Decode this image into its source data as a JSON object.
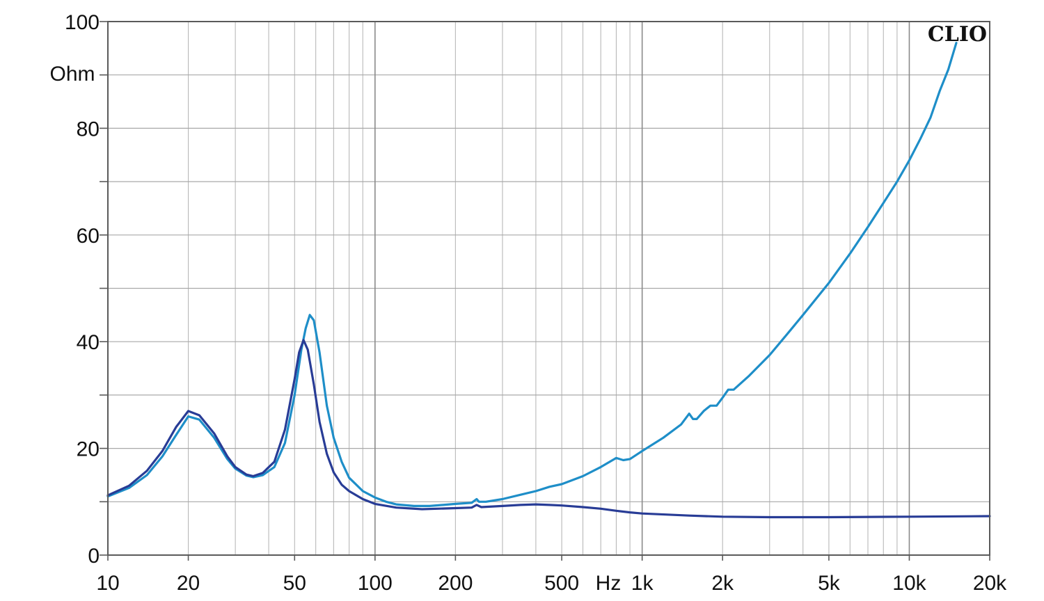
{
  "chart_data": {
    "type": "line",
    "brand": "CLIO",
    "x_scale": "log",
    "xlim": [
      10,
      20000
    ],
    "ylim": [
      0,
      100
    ],
    "ylabel": "Ohm",
    "xlabel": "Hz",
    "grid": true,
    "y_ticks": [
      {
        "value": 0,
        "label": "0"
      },
      {
        "value": 20,
        "label": "20"
      },
      {
        "value": 40,
        "label": "40"
      },
      {
        "value": 60,
        "label": "60"
      },
      {
        "value": 80,
        "label": "80"
      },
      {
        "value": 100,
        "label": "100"
      }
    ],
    "x_ticks": [
      {
        "value": 10,
        "label": "10"
      },
      {
        "value": 20,
        "label": "20"
      },
      {
        "value": 50,
        "label": "50"
      },
      {
        "value": 100,
        "label": "100"
      },
      {
        "value": 200,
        "label": "200"
      },
      {
        "value": 500,
        "label": "500"
      },
      {
        "value": 1000,
        "label": "1k"
      },
      {
        "value": 2000,
        "label": "2k"
      },
      {
        "value": 5000,
        "label": "5k"
      },
      {
        "value": 10000,
        "label": "10k"
      },
      {
        "value": 20000,
        "label": "20k"
      }
    ],
    "series": [
      {
        "color": "#1E8EC8",
        "points": [
          [
            10,
            11
          ],
          [
            12,
            12.6
          ],
          [
            14,
            15
          ],
          [
            16,
            18.5
          ],
          [
            18,
            22.5
          ],
          [
            20,
            26
          ],
          [
            22,
            25.4
          ],
          [
            25,
            22
          ],
          [
            28,
            18
          ],
          [
            30,
            16.2
          ],
          [
            33,
            14.9
          ],
          [
            35,
            14.6
          ],
          [
            38,
            15
          ],
          [
            42,
            16.5
          ],
          [
            46,
            21
          ],
          [
            50,
            30
          ],
          [
            53,
            38.5
          ],
          [
            55,
            42.5
          ],
          [
            57,
            45
          ],
          [
            59,
            44
          ],
          [
            62,
            38
          ],
          [
            66,
            28
          ],
          [
            70,
            22
          ],
          [
            75,
            17.5
          ],
          [
            80,
            14.5
          ],
          [
            90,
            12
          ],
          [
            100,
            10.8
          ],
          [
            110,
            10
          ],
          [
            120,
            9.5
          ],
          [
            140,
            9.2
          ],
          [
            160,
            9.2
          ],
          [
            200,
            9.6
          ],
          [
            230,
            9.8
          ],
          [
            240,
            10.5
          ],
          [
            245,
            10
          ],
          [
            260,
            10
          ],
          [
            300,
            10.5
          ],
          [
            350,
            11.3
          ],
          [
            400,
            12
          ],
          [
            450,
            12.8
          ],
          [
            500,
            13.3
          ],
          [
            600,
            14.8
          ],
          [
            700,
            16.5
          ],
          [
            800,
            18.2
          ],
          [
            850,
            17.8
          ],
          [
            900,
            18
          ],
          [
            1000,
            19.5
          ],
          [
            1200,
            22
          ],
          [
            1400,
            24.5
          ],
          [
            1500,
            26.5
          ],
          [
            1550,
            25.5
          ],
          [
            1600,
            25.5
          ],
          [
            1700,
            27
          ],
          [
            1800,
            28
          ],
          [
            1900,
            28
          ],
          [
            2000,
            29.5
          ],
          [
            2100,
            31
          ],
          [
            2200,
            31
          ],
          [
            2500,
            33.5
          ],
          [
            3000,
            37.5
          ],
          [
            3500,
            41.5
          ],
          [
            4000,
            45
          ],
          [
            5000,
            51
          ],
          [
            6000,
            56.5
          ],
          [
            7000,
            61.5
          ],
          [
            8000,
            66
          ],
          [
            9000,
            70
          ],
          [
            10000,
            74
          ],
          [
            11000,
            78
          ],
          [
            12000,
            82
          ],
          [
            13000,
            87
          ],
          [
            14000,
            91
          ],
          [
            15000,
            96
          ]
        ]
      },
      {
        "color": "#283C96",
        "points": [
          [
            10,
            11.2
          ],
          [
            12,
            13
          ],
          [
            14,
            15.8
          ],
          [
            16,
            19.5
          ],
          [
            18,
            24
          ],
          [
            20,
            27
          ],
          [
            22,
            26.2
          ],
          [
            25,
            22.8
          ],
          [
            28,
            18.5
          ],
          [
            30,
            16.5
          ],
          [
            33,
            15.1
          ],
          [
            35,
            14.8
          ],
          [
            38,
            15.4
          ],
          [
            42,
            17.5
          ],
          [
            46,
            23.5
          ],
          [
            50,
            33
          ],
          [
            52,
            38
          ],
          [
            54,
            40.3
          ],
          [
            56,
            38.5
          ],
          [
            59,
            32
          ],
          [
            62,
            25
          ],
          [
            66,
            19
          ],
          [
            70,
            15.5
          ],
          [
            75,
            13.2
          ],
          [
            80,
            12
          ],
          [
            90,
            10.5
          ],
          [
            100,
            9.6
          ],
          [
            120,
            8.9
          ],
          [
            150,
            8.6
          ],
          [
            200,
            8.8
          ],
          [
            230,
            8.9
          ],
          [
            240,
            9.4
          ],
          [
            250,
            9
          ],
          [
            300,
            9.2
          ],
          [
            350,
            9.4
          ],
          [
            400,
            9.5
          ],
          [
            450,
            9.4
          ],
          [
            500,
            9.3
          ],
          [
            600,
            9
          ],
          [
            700,
            8.7
          ],
          [
            800,
            8.3
          ],
          [
            900,
            8
          ],
          [
            1000,
            7.8
          ],
          [
            1500,
            7.4
          ],
          [
            2000,
            7.2
          ],
          [
            3000,
            7.1
          ],
          [
            5000,
            7.1
          ],
          [
            10000,
            7.2
          ],
          [
            20000,
            7.3
          ]
        ]
      }
    ]
  }
}
